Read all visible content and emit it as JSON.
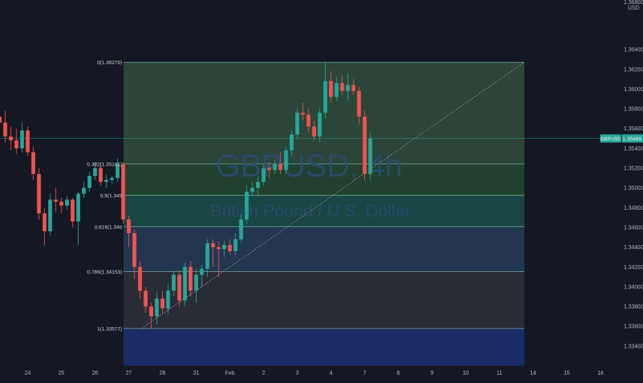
{
  "symbol_watermark": "GBPUSD, 4h",
  "description_watermark": "British Pound / U.S. Dollar",
  "chart_data": {
    "type": "candlestick",
    "symbol": "GBPUSD",
    "timeframe": "4h",
    "description": "British Pound / U.S. Dollar",
    "currency": "USD",
    "axis_top_label": "1.36800",
    "ylim": [
      1.332,
      1.369
    ],
    "y_ticks": [
      1.334,
      1.336,
      1.338,
      1.34,
      1.342,
      1.344,
      1.346,
      1.348,
      1.35,
      1.352,
      1.354,
      1.356,
      1.358,
      1.36,
      1.362,
      1.364
    ],
    "y_tick_labels": [
      "1.33400",
      "1.33600",
      "1.33800",
      "1.34000",
      "1.34200",
      "1.34400",
      "1.34600",
      "1.34800",
      "1.35000",
      "1.35200",
      "1.35400",
      "1.35600",
      "1.35800",
      "1.36000",
      "1.36200",
      "1.36400"
    ],
    "x_tick_labels": [
      "24",
      "25",
      "26",
      "27",
      "28",
      "31",
      "Feb",
      "2",
      "3",
      "4",
      "7",
      "8",
      "9",
      "10",
      "11",
      "14",
      "15",
      "16"
    ],
    "x_tick_slots": [
      6,
      12,
      18,
      24,
      30,
      36,
      42,
      48,
      54,
      60,
      66,
      72,
      78,
      84,
      90,
      96,
      102,
      108
    ],
    "current_price": 1.35499,
    "current_price_label": "1.35499",
    "current_symbol_label": "GBPUSD",
    "colors": {
      "up": "#26a69a",
      "down": "#ef5350",
      "background": "#141823",
      "axis_text": "#b2b5be"
    },
    "candles": [
      {
        "o": 1.359,
        "h": 1.3598,
        "l": 1.3568,
        "c": 1.3572
      },
      {
        "o": 1.3572,
        "h": 1.358,
        "l": 1.356,
        "c": 1.3566
      },
      {
        "o": 1.3566,
        "h": 1.3578,
        "l": 1.3546,
        "c": 1.3552
      },
      {
        "o": 1.3552,
        "h": 1.3562,
        "l": 1.3538,
        "c": 1.3548
      },
      {
        "o": 1.3548,
        "h": 1.356,
        "l": 1.3534,
        "c": 1.354
      },
      {
        "o": 1.354,
        "h": 1.3566,
        "l": 1.3536,
        "c": 1.3558
      },
      {
        "o": 1.3558,
        "h": 1.3562,
        "l": 1.3532,
        "c": 1.3536
      },
      {
        "o": 1.3536,
        "h": 1.3542,
        "l": 1.3508,
        "c": 1.3514
      },
      {
        "o": 1.3514,
        "h": 1.352,
        "l": 1.3468,
        "c": 1.3474
      },
      {
        "o": 1.3474,
        "h": 1.348,
        "l": 1.3442,
        "c": 1.3456
      },
      {
        "o": 1.3456,
        "h": 1.3494,
        "l": 1.3452,
        "c": 1.3488
      },
      {
        "o": 1.3488,
        "h": 1.35,
        "l": 1.3476,
        "c": 1.3486
      },
      {
        "o": 1.3486,
        "h": 1.349,
        "l": 1.3474,
        "c": 1.3482
      },
      {
        "o": 1.3482,
        "h": 1.3492,
        "l": 1.3478,
        "c": 1.3488
      },
      {
        "o": 1.3488,
        "h": 1.349,
        "l": 1.346,
        "c": 1.3466
      },
      {
        "o": 1.3466,
        "h": 1.3496,
        "l": 1.3442,
        "c": 1.3494
      },
      {
        "o": 1.3494,
        "h": 1.3506,
        "l": 1.349,
        "c": 1.35
      },
      {
        "o": 1.35,
        "h": 1.3516,
        "l": 1.3496,
        "c": 1.3512
      },
      {
        "o": 1.3512,
        "h": 1.3526,
        "l": 1.3508,
        "c": 1.352
      },
      {
        "o": 1.352,
        "h": 1.3524,
        "l": 1.3502,
        "c": 1.3506
      },
      {
        "o": 1.3506,
        "h": 1.3514,
        "l": 1.35,
        "c": 1.3508
      },
      {
        "o": 1.3508,
        "h": 1.3512,
        "l": 1.3504,
        "c": 1.351
      },
      {
        "o": 1.351,
        "h": 1.353,
        "l": 1.3506,
        "c": 1.3524
      },
      {
        "o": 1.3524,
        "h": 1.3526,
        "l": 1.3464,
        "c": 1.3468
      },
      {
        "o": 1.3468,
        "h": 1.3472,
        "l": 1.344,
        "c": 1.3454
      },
      {
        "o": 1.3454,
        "h": 1.3458,
        "l": 1.3408,
        "c": 1.342
      },
      {
        "o": 1.342,
        "h": 1.3426,
        "l": 1.3388,
        "c": 1.3396
      },
      {
        "o": 1.3396,
        "h": 1.34,
        "l": 1.3374,
        "c": 1.338
      },
      {
        "o": 1.338,
        "h": 1.3384,
        "l": 1.3358,
        "c": 1.337
      },
      {
        "o": 1.337,
        "h": 1.3394,
        "l": 1.3362,
        "c": 1.3388
      },
      {
        "o": 1.3388,
        "h": 1.3396,
        "l": 1.3372,
        "c": 1.3378
      },
      {
        "o": 1.3378,
        "h": 1.3402,
        "l": 1.3372,
        "c": 1.3396
      },
      {
        "o": 1.3396,
        "h": 1.3416,
        "l": 1.339,
        "c": 1.3412
      },
      {
        "o": 1.3412,
        "h": 1.3416,
        "l": 1.338,
        "c": 1.3386
      },
      {
        "o": 1.3386,
        "h": 1.3424,
        "l": 1.338,
        "c": 1.342
      },
      {
        "o": 1.342,
        "h": 1.3426,
        "l": 1.339,
        "c": 1.3396
      },
      {
        "o": 1.3396,
        "h": 1.3418,
        "l": 1.3384,
        "c": 1.3412
      },
      {
        "o": 1.3412,
        "h": 1.3422,
        "l": 1.34,
        "c": 1.3418
      },
      {
        "o": 1.3418,
        "h": 1.3448,
        "l": 1.341,
        "c": 1.3444
      },
      {
        "o": 1.3444,
        "h": 1.3448,
        "l": 1.342,
        "c": 1.344
      },
      {
        "o": 1.344,
        "h": 1.3446,
        "l": 1.341,
        "c": 1.3438
      },
      {
        "o": 1.3438,
        "h": 1.3446,
        "l": 1.343,
        "c": 1.3442
      },
      {
        "o": 1.3442,
        "h": 1.3448,
        "l": 1.3432,
        "c": 1.3436
      },
      {
        "o": 1.3436,
        "h": 1.3454,
        "l": 1.3432,
        "c": 1.3448
      },
      {
        "o": 1.3448,
        "h": 1.3474,
        "l": 1.3444,
        "c": 1.3468
      },
      {
        "o": 1.3468,
        "h": 1.3502,
        "l": 1.3464,
        "c": 1.3496
      },
      {
        "o": 1.3496,
        "h": 1.3506,
        "l": 1.3492,
        "c": 1.35
      },
      {
        "o": 1.35,
        "h": 1.3512,
        "l": 1.3492,
        "c": 1.3506
      },
      {
        "o": 1.3506,
        "h": 1.3524,
        "l": 1.3502,
        "c": 1.352
      },
      {
        "o": 1.352,
        "h": 1.3526,
        "l": 1.351,
        "c": 1.3518
      },
      {
        "o": 1.3518,
        "h": 1.3528,
        "l": 1.3514,
        "c": 1.3524
      },
      {
        "o": 1.3524,
        "h": 1.3536,
        "l": 1.3514,
        "c": 1.3518
      },
      {
        "o": 1.3518,
        "h": 1.3542,
        "l": 1.3514,
        "c": 1.3538
      },
      {
        "o": 1.3538,
        "h": 1.3558,
        "l": 1.3532,
        "c": 1.3554
      },
      {
        "o": 1.3554,
        "h": 1.358,
        "l": 1.355,
        "c": 1.3576
      },
      {
        "o": 1.3576,
        "h": 1.3586,
        "l": 1.3568,
        "c": 1.3574
      },
      {
        "o": 1.3574,
        "h": 1.358,
        "l": 1.3556,
        "c": 1.3562
      },
      {
        "o": 1.3562,
        "h": 1.3568,
        "l": 1.3548,
        "c": 1.3552
      },
      {
        "o": 1.3552,
        "h": 1.358,
        "l": 1.3546,
        "c": 1.3576
      },
      {
        "o": 1.3576,
        "h": 1.3627,
        "l": 1.357,
        "c": 1.3608
      },
      {
        "o": 1.3608,
        "h": 1.3618,
        "l": 1.3586,
        "c": 1.3592
      },
      {
        "o": 1.3592,
        "h": 1.3612,
        "l": 1.3588,
        "c": 1.3606
      },
      {
        "o": 1.3606,
        "h": 1.3614,
        "l": 1.3594,
        "c": 1.3598
      },
      {
        "o": 1.3598,
        "h": 1.3616,
        "l": 1.3588,
        "c": 1.3604
      },
      {
        "o": 1.3604,
        "h": 1.361,
        "l": 1.3594,
        "c": 1.3598
      },
      {
        "o": 1.3598,
        "h": 1.3602,
        "l": 1.3564,
        "c": 1.3572
      },
      {
        "o": 1.3572,
        "h": 1.3578,
        "l": 1.3508,
        "c": 1.3514
      },
      {
        "o": 1.3514,
        "h": 1.3556,
        "l": 1.3508,
        "c": 1.355
      }
    ],
    "fibonacci": {
      "levels": [
        {
          "ratio": "0",
          "price": 1.3627,
          "label": "0(1.36270)"
        },
        {
          "ratio": "0.382",
          "price": 1.35241,
          "label": "0.382(1.35241)"
        },
        {
          "ratio": "0.5",
          "price": 1.34924,
          "label": "0.5(1.349"
        },
        {
          "ratio": "0.618",
          "price": 1.34606,
          "label": "0.618(1.346"
        },
        {
          "ratio": "0.786",
          "price": 1.34153,
          "label": "0.786(1.34153)"
        },
        {
          "ratio": "1",
          "price": 1.33577,
          "label": "1(1.33577)"
        }
      ],
      "extension_bottom": 1.332,
      "zone_colors": [
        "#2d4a3c",
        "#22452f",
        "#1a4a48",
        "#243a54",
        "#2c2f37",
        "#1c2e6e"
      ]
    }
  }
}
